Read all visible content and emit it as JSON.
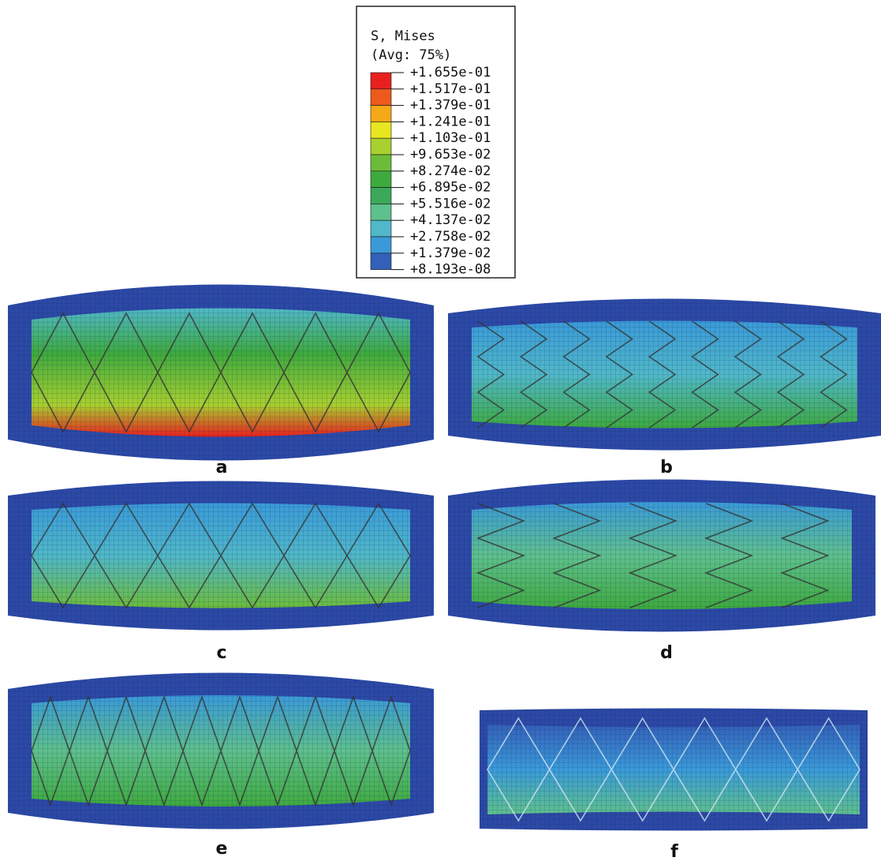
{
  "legend": {
    "title": "S, Mises",
    "subtitle": "(Avg: 75%)",
    "labels": [
      "+1.655e-01",
      "+1.517e-01",
      "+1.379e-01",
      "+1.241e-01",
      "+1.103e-01",
      "+9.653e-02",
      "+8.274e-02",
      "+6.895e-02",
      "+5.516e-02",
      "+4.137e-02",
      "+2.758e-02",
      "+1.379e-02",
      "+8.193e-08"
    ],
    "colors": [
      "#e8201e",
      "#ee5a1c",
      "#f5a818",
      "#e8e61e",
      "#a8d02e",
      "#6cbc3a",
      "#3eaa3e",
      "#3ca85a",
      "#5ec08c",
      "#50b8c8",
      "#3a9ad8",
      "#3460b8"
    ]
  },
  "panels": [
    {
      "label": "a"
    },
    {
      "label": "b"
    },
    {
      "label": "c"
    },
    {
      "label": "d"
    },
    {
      "label": "e"
    },
    {
      "label": "f"
    }
  ]
}
